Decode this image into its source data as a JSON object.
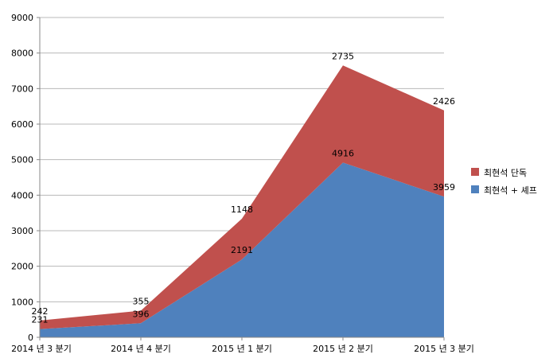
{
  "chart_data": {
    "type": "area",
    "stacked": true,
    "categories": [
      "2014 년 3 분기",
      "2014 년 4 분기",
      "2015 년 1 분기",
      "2015 년 2 분기",
      "2015 년 3 분기"
    ],
    "series": [
      {
        "name": "최현석 + 셰프",
        "color": "#4f81bd",
        "values": [
          231,
          396,
          2191,
          4916,
          3959
        ]
      },
      {
        "name": "최현석 단독",
        "color": "#c0504d",
        "values": [
          242,
          355,
          1148,
          2735,
          2426
        ]
      }
    ],
    "ylim": [
      0,
      9000
    ],
    "yticks": [
      0,
      1000,
      2000,
      3000,
      4000,
      5000,
      6000,
      7000,
      8000,
      9000
    ],
    "grid": true,
    "legend": "right",
    "legend_order": [
      "최현석 단독",
      "최현석 + 셰프"
    ]
  }
}
